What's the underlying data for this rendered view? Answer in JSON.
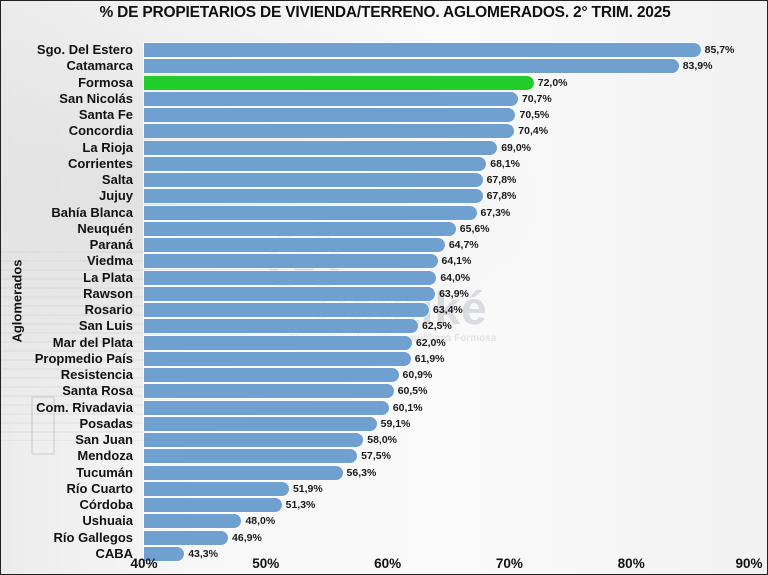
{
  "title": "% DE PROPIETARIOS DE VIVIENDA/TERRENO. AGLOMERADOS. 2° TRIM. 2025",
  "y_axis_title": "Aglomerados",
  "watermark": {
    "name": "Politiké",
    "subtitle": "Observatorio de políticas públicas Formosa",
    "icon": "at-sign-icon"
  },
  "colors": {
    "bar_default": "#6fa0d0",
    "bar_highlight": "#22cc2a",
    "text": "#111111"
  },
  "x_ticks": [
    "40%",
    "50%",
    "60%",
    "70%",
    "80%",
    "90%"
  ],
  "chart_data": {
    "type": "bar",
    "orientation": "horizontal",
    "title": "% DE PROPIETARIOS DE VIVIENDA/TERRENO. AGLOMERADOS. 2° TRIM. 2025",
    "xlabel": "",
    "ylabel": "Aglomerados",
    "xlim": [
      40,
      90
    ],
    "x_tick_values": [
      40,
      50,
      60,
      70,
      80,
      90
    ],
    "grid": false,
    "legend": "none",
    "highlight": "Formosa",
    "categories": [
      "Sgo. Del Estero",
      "Catamarca",
      "Formosa",
      "San Nicolás",
      "Santa Fe",
      "Concordia",
      "La Rioja",
      "Corrientes",
      "Salta",
      "Jujuy",
      "Bahía Blanca",
      "Neuquén",
      "Paraná",
      "Viedma",
      "La Plata",
      "Rawson",
      "Rosario",
      "San Luis",
      "Mar del Plata",
      "Propmedio País",
      "Resistencia",
      "Santa Rosa",
      "Com. Rivadavia",
      "Posadas",
      "San Juan",
      "Mendoza",
      "Tucumán",
      "Río Cuarto",
      "Córdoba",
      "Ushuaia",
      "Río Gallegos",
      "CABA"
    ],
    "values": [
      85.7,
      83.9,
      72.0,
      70.7,
      70.5,
      70.4,
      69.0,
      68.1,
      67.8,
      67.8,
      67.3,
      65.6,
      64.7,
      64.1,
      64.0,
      63.9,
      63.4,
      62.5,
      62.0,
      61.9,
      60.9,
      60.5,
      60.1,
      59.1,
      58.0,
      57.5,
      56.3,
      51.9,
      51.3,
      48.0,
      46.9,
      43.3
    ],
    "labels": [
      "85,7%",
      "83,9%",
      "72,0%",
      "70,7%",
      "70,5%",
      "70,4%",
      "69,0%",
      "68,1%",
      "67,8%",
      "67,8%",
      "67,3%",
      "65,6%",
      "64,7%",
      "64,1%",
      "64,0%",
      "63,9%",
      "63,4%",
      "62,5%",
      "62,0%",
      "61,9%",
      "60,9%",
      "60,5%",
      "60,1%",
      "59,1%",
      "58,0%",
      "57,5%",
      "56,3%",
      "51,9%",
      "51,3%",
      "48,0%",
      "46,9%",
      "43,3%"
    ]
  }
}
